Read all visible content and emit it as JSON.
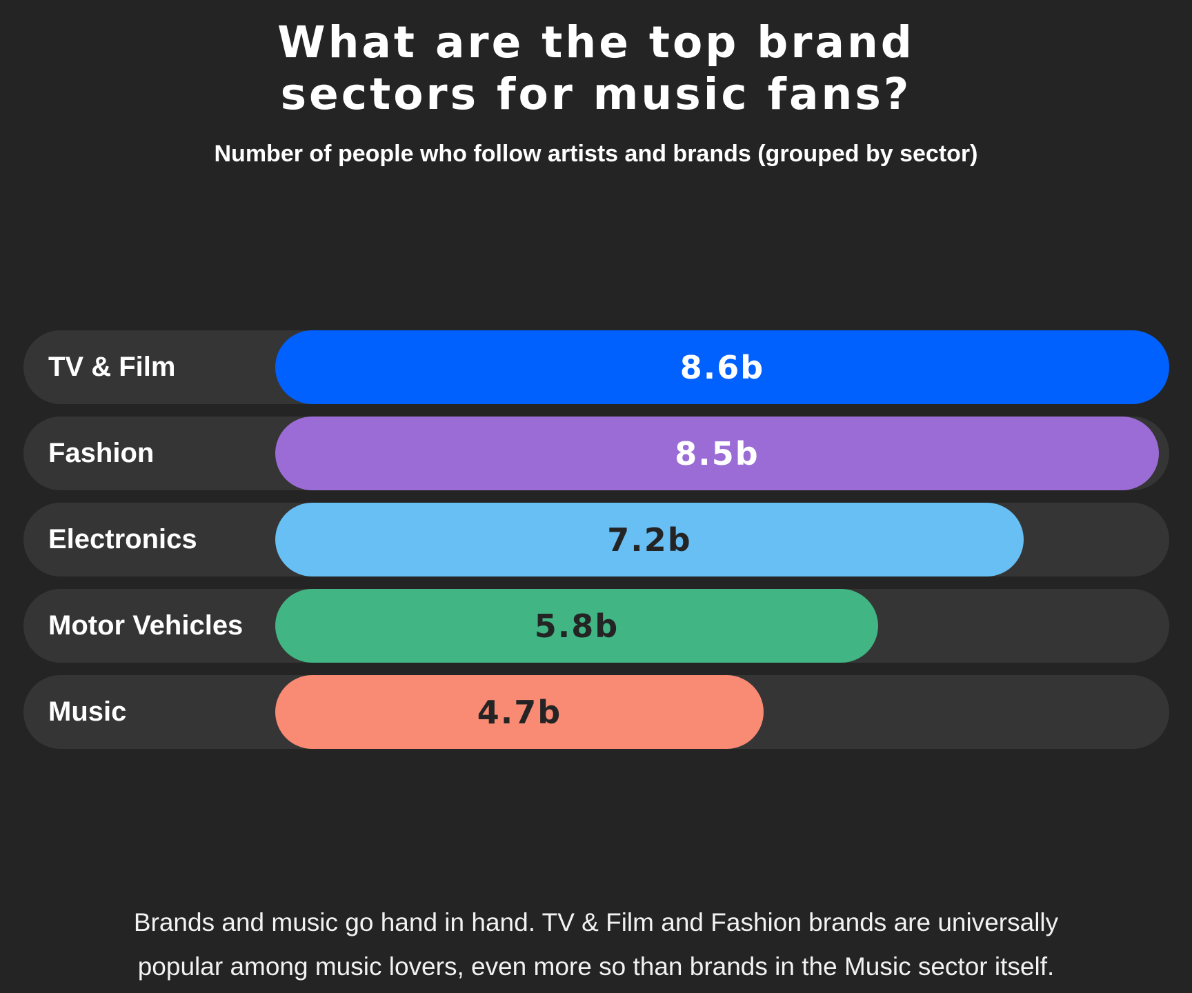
{
  "page": {
    "title_line1": "What are the top brand",
    "title_line2": "sectors for music fans?",
    "subtitle": "Number of people who follow artists and brands (grouped by sector)",
    "footer_line1": "Brands and music go hand in hand. TV & Film and Fashion brands are universally",
    "footer_line2": "popular among music lovers, even more so than brands in the Music sector itself.",
    "colors": {
      "background": "#242424",
      "row_background": "#353535",
      "title_text": "#FFFFFF",
      "footer_text": "#F2F2F2"
    }
  },
  "chart_data": {
    "type": "bar",
    "orientation": "horizontal",
    "title": "What are the top brand sectors for music fans?",
    "subtitle": "Number of people who follow artists and brands (grouped by sector)",
    "value_unit": "b",
    "xlim": [
      0,
      8.6
    ],
    "grid": false,
    "legend": false,
    "categories": [
      "TV & Film",
      "Fashion",
      "Electronics",
      "Motor Vehicles",
      "Music"
    ],
    "values": [
      8.6,
      8.5,
      7.2,
      5.8,
      4.7
    ],
    "rows": [
      {
        "category": "TV & Film",
        "value": 8.6,
        "value_label": "8.6b",
        "bar_color": "#0061FE",
        "value_text_color": "#FFFFFF"
      },
      {
        "category": "Fashion",
        "value": 8.5,
        "value_label": "8.5b",
        "bar_color": "#9B6CD6",
        "value_text_color": "#FFFFFF"
      },
      {
        "category": "Electronics",
        "value": 7.2,
        "value_label": "7.2b",
        "bar_color": "#67BFF3",
        "value_text_color": "#242424"
      },
      {
        "category": "Motor Vehicles",
        "value": 5.8,
        "value_label": "5.8b",
        "bar_color": "#41B583",
        "value_text_color": "#242424"
      },
      {
        "category": "Music",
        "value": 4.7,
        "value_label": "4.7b",
        "bar_color": "#F98A74",
        "value_text_color": "#242424"
      }
    ]
  }
}
